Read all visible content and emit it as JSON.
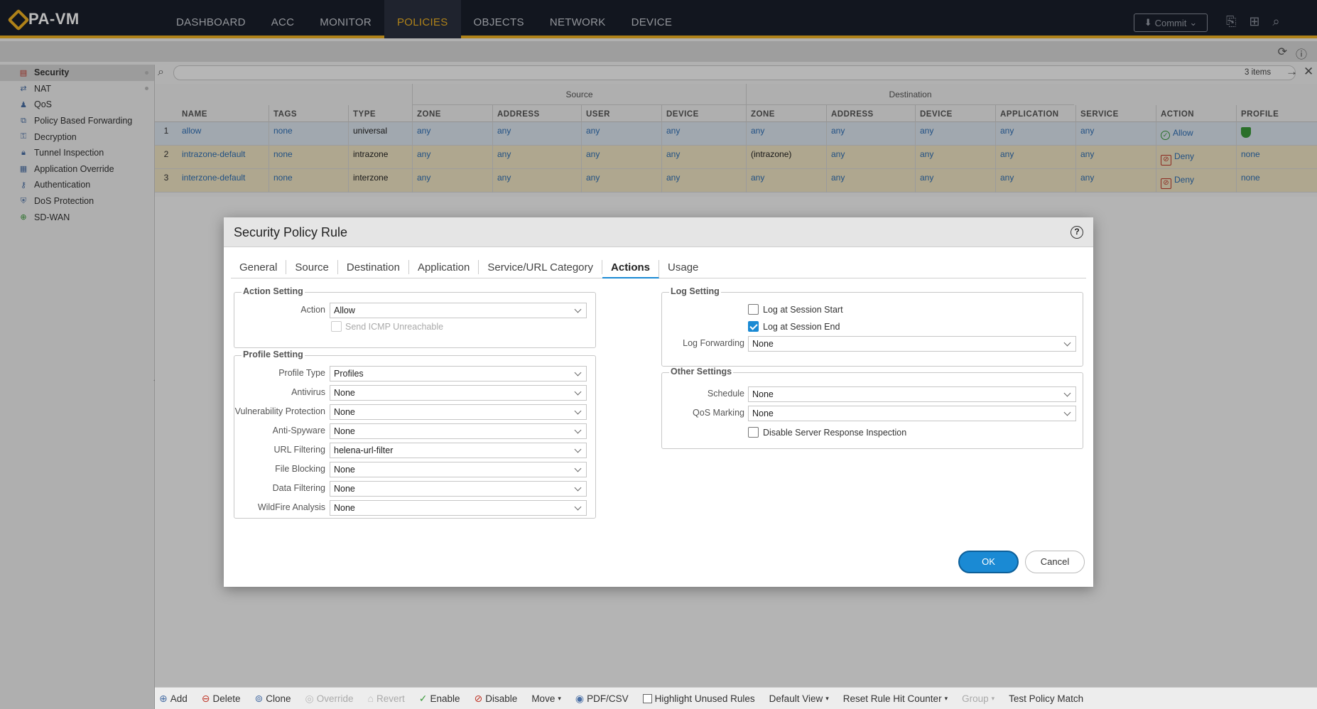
{
  "app": {
    "title": "PA-VM"
  },
  "nav": [
    "DASHBOARD",
    "ACC",
    "MONITOR",
    "POLICIES",
    "OBJECTS",
    "NETWORK",
    "DEVICE"
  ],
  "nav_active": "POLICIES",
  "commit_label": "Commit",
  "leftnav": [
    {
      "label": "Security",
      "icon": "security-rules-icon"
    },
    {
      "label": "NAT",
      "icon": "nat-icon"
    },
    {
      "label": "QoS",
      "icon": "qos-icon"
    },
    {
      "label": "Policy Based Forwarding",
      "icon": "pbf-icon"
    },
    {
      "label": "Decryption",
      "icon": "decryption-icon"
    },
    {
      "label": "Tunnel Inspection",
      "icon": "tunnel-icon"
    },
    {
      "label": "Application Override",
      "icon": "app-override-icon"
    },
    {
      "label": "Authentication",
      "icon": "authentication-icon"
    },
    {
      "label": "DoS Protection",
      "icon": "dos-icon"
    },
    {
      "label": "SD-WAN",
      "icon": "sdwan-icon"
    }
  ],
  "search": {
    "items_count": "3 items"
  },
  "table": {
    "groups": {
      "source": "Source",
      "destination": "Destination"
    },
    "headers": [
      "NAME",
      "TAGS",
      "TYPE",
      "ZONE",
      "ADDRESS",
      "USER",
      "DEVICE",
      "ZONE",
      "ADDRESS",
      "DEVICE",
      "APPLICATION",
      "SERVICE",
      "ACTION",
      "PROFILE"
    ],
    "rows": [
      {
        "num": "1",
        "name": "allow",
        "tags": "none",
        "type": "universal",
        "src_zone": "any",
        "src_addr": "any",
        "user": "any",
        "src_dev": "any",
        "dst_zone": "any",
        "dst_addr": "any",
        "dst_dev": "any",
        "app": "any",
        "service": "any",
        "action": "Allow",
        "profile": ""
      },
      {
        "num": "2",
        "name": "intrazone-default",
        "tags": "none",
        "type": "intrazone",
        "src_zone": "any",
        "src_addr": "any",
        "user": "any",
        "src_dev": "any",
        "dst_zone": "(intrazone)",
        "dst_addr": "any",
        "dst_dev": "any",
        "app": "any",
        "service": "any",
        "action": "Deny",
        "profile": "none"
      },
      {
        "num": "3",
        "name": "interzone-default",
        "tags": "none",
        "type": "interzone",
        "src_zone": "any",
        "src_addr": "any",
        "user": "any",
        "src_dev": "any",
        "dst_zone": "any",
        "dst_addr": "any",
        "dst_dev": "any",
        "app": "any",
        "service": "any",
        "action": "Deny",
        "profile": "none"
      }
    ]
  },
  "bottombar": {
    "add": "Add",
    "delete": "Delete",
    "clone": "Clone",
    "override": "Override",
    "revert": "Revert",
    "enable": "Enable",
    "disable": "Disable",
    "move": "Move",
    "pdfcsv": "PDF/CSV",
    "highlight": "Highlight Unused Rules",
    "default_view": "Default View",
    "reset": "Reset Rule Hit Counter",
    "group": "Group",
    "test": "Test Policy Match"
  },
  "modal": {
    "title": "Security Policy Rule",
    "tabs": [
      "General",
      "Source",
      "Destination",
      "Application",
      "Service/URL Category",
      "Actions",
      "Usage"
    ],
    "active_tab": "Actions",
    "action_setting": {
      "legend": "Action Setting",
      "action_label": "Action",
      "action_value": "Allow",
      "icmp_label": "Send ICMP Unreachable",
      "icmp_checked": false
    },
    "profile_setting": {
      "legend": "Profile Setting",
      "fields": [
        {
          "label": "Profile Type",
          "value": "Profiles"
        },
        {
          "label": "Antivirus",
          "value": "None"
        },
        {
          "label": "Vulnerability Protection",
          "value": "None"
        },
        {
          "label": "Anti-Spyware",
          "value": "None"
        },
        {
          "label": "URL Filtering",
          "value": "helena-url-filter"
        },
        {
          "label": "File Blocking",
          "value": "None"
        },
        {
          "label": "Data Filtering",
          "value": "None"
        },
        {
          "label": "WildFire Analysis",
          "value": "None"
        }
      ]
    },
    "log_setting": {
      "legend": "Log Setting",
      "start_label": "Log at Session Start",
      "start_checked": false,
      "end_label": "Log at Session End",
      "end_checked": true,
      "forwarding_label": "Log Forwarding",
      "forwarding_value": "None"
    },
    "other_settings": {
      "legend": "Other Settings",
      "schedule_label": "Schedule",
      "schedule_value": "None",
      "qos_label": "QoS Marking",
      "qos_value": "None",
      "dsri_label": "Disable Server Response Inspection",
      "dsri_checked": false
    },
    "ok": "OK",
    "cancel": "Cancel"
  }
}
